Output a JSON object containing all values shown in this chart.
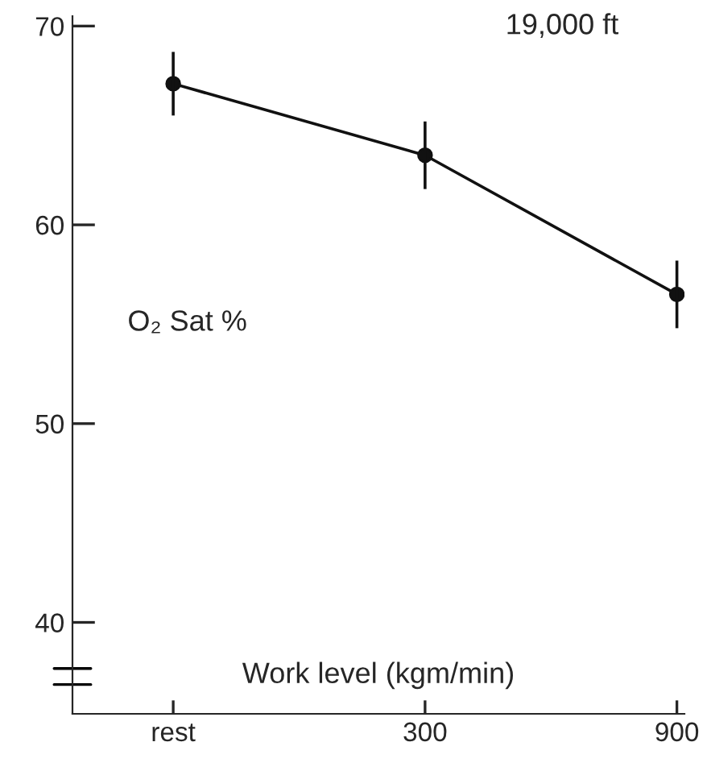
{
  "chart_data": {
    "type": "line",
    "categories": [
      "rest",
      "300",
      "900"
    ],
    "series": [
      {
        "color": "#111111",
        "values": [
          67.1,
          63.5,
          56.5
        ],
        "errors": [
          1.6,
          1.7,
          1.7
        ]
      }
    ],
    "ylabel": "O₂ Sat %",
    "xlabel": "Work level (kgm/min)",
    "annotations": [
      "19,000 ft"
    ],
    "ylim": [
      35.4,
      70.5
    ],
    "yticks": [
      40,
      50,
      60,
      70
    ],
    "marker": "circle",
    "line_style": "solid",
    "grid": false,
    "legend": false
  }
}
